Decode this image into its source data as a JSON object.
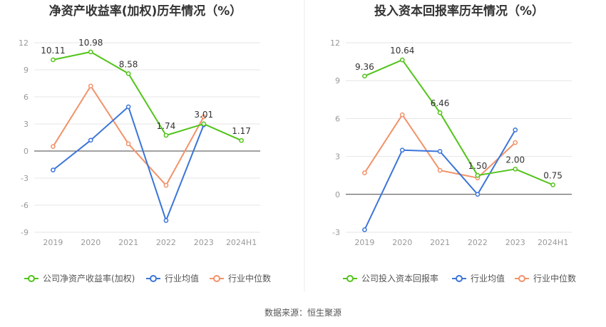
{
  "source": "数据来源：恒生聚源",
  "colors": {
    "company": "#52c41a",
    "avg": "#3b75d9",
    "median": "#f2926a",
    "grid": "#e6e6e6",
    "axis": "#444444"
  },
  "chart_data": [
    {
      "type": "line",
      "title": "净资产收益率(加权)历年情况（%）",
      "categories": [
        "2019",
        "2020",
        "2021",
        "2022",
        "2023",
        "2024H1"
      ],
      "y_ticks": [
        "12",
        "9",
        "6",
        "3",
        "0",
        "-3",
        "-6",
        "-9"
      ],
      "ylim": [
        -9,
        12
      ],
      "y_step": 3,
      "grid": true,
      "legend_position": "bottom",
      "series": [
        {
          "name": "公司净资产收益率(加权)",
          "color": "#52c41a",
          "values": [
            10.11,
            10.98,
            8.58,
            1.74,
            3.01,
            1.17
          ],
          "labels": [
            "10.11",
            "10.98",
            "8.58",
            "1.74",
            "3.01",
            "1.17"
          ]
        },
        {
          "name": "行业均值",
          "color": "#3b75d9",
          "values": [
            -2.1,
            1.2,
            4.9,
            -7.7,
            2.9,
            null
          ]
        },
        {
          "name": "行业中位数",
          "color": "#f2926a",
          "values": [
            0.5,
            7.2,
            0.8,
            -3.8,
            3.8,
            null
          ]
        }
      ]
    },
    {
      "type": "line",
      "title": "投入资本回报率历年情况（%）",
      "categories": [
        "2019",
        "2020",
        "2021",
        "2022",
        "2023",
        "2024H1"
      ],
      "y_ticks": [
        "12",
        "9",
        "6",
        "3",
        "0",
        "-3"
      ],
      "ylim": [
        -3,
        12
      ],
      "y_step": 3,
      "grid": true,
      "legend_position": "bottom",
      "series": [
        {
          "name": "公司投入资本回报率",
          "color": "#52c41a",
          "values": [
            9.36,
            10.64,
            6.46,
            1.5,
            2.0,
            0.75
          ],
          "labels": [
            "9.36",
            "10.64",
            "6.46",
            "1.50",
            "2.00",
            "0.75"
          ]
        },
        {
          "name": "行业均值",
          "color": "#3b75d9",
          "values": [
            -2.8,
            3.5,
            3.4,
            0.0,
            5.1,
            null
          ]
        },
        {
          "name": "行业中位数",
          "color": "#f2926a",
          "values": [
            1.7,
            6.3,
            1.9,
            1.3,
            4.1,
            null
          ]
        }
      ]
    }
  ]
}
